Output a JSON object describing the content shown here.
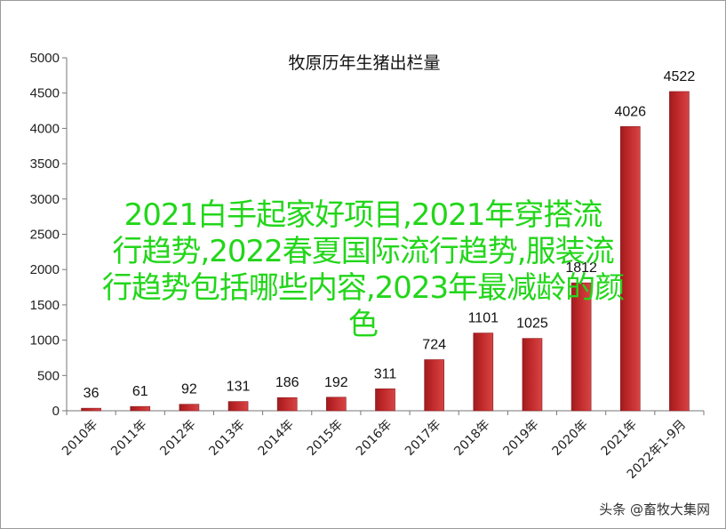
{
  "chart_data": {
    "type": "bar",
    "title": "牧原历年生猪出栏量",
    "categories": [
      "2010年",
      "2011年",
      "2012年",
      "2013年",
      "2014年",
      "2015年",
      "2016年",
      "2017年",
      "2018年",
      "2019年",
      "2020年",
      "2021年",
      "2022年1-9月"
    ],
    "values": [
      36,
      61,
      92,
      131,
      186,
      192,
      311,
      724,
      1101,
      1025,
      1812,
      4026,
      4522
    ],
    "data_labels": [
      "36",
      "61",
      "92",
      "131",
      "186",
      "192",
      "311",
      "724",
      "1101",
      "1025",
      "1812",
      "4026",
      "4522"
    ],
    "ylim": [
      0,
      5000
    ],
    "yticks": [
      "0",
      "500",
      "1000",
      "1500",
      "2000",
      "2500",
      "3000",
      "3500",
      "4000",
      "4500",
      "5000"
    ],
    "grid": false,
    "bar_color": "#c0282a"
  },
  "overlay": {
    "lines": [
      "2021白手起家好项目,2021年穿搭流",
      "行趋势,2022春夏国际流行趋势,服装流",
      "行趋势包括哪些内容,2023年最减龄的颜",
      "色"
    ],
    "color": "#22d61a"
  },
  "watermark": "头条 @畜牧大集网"
}
